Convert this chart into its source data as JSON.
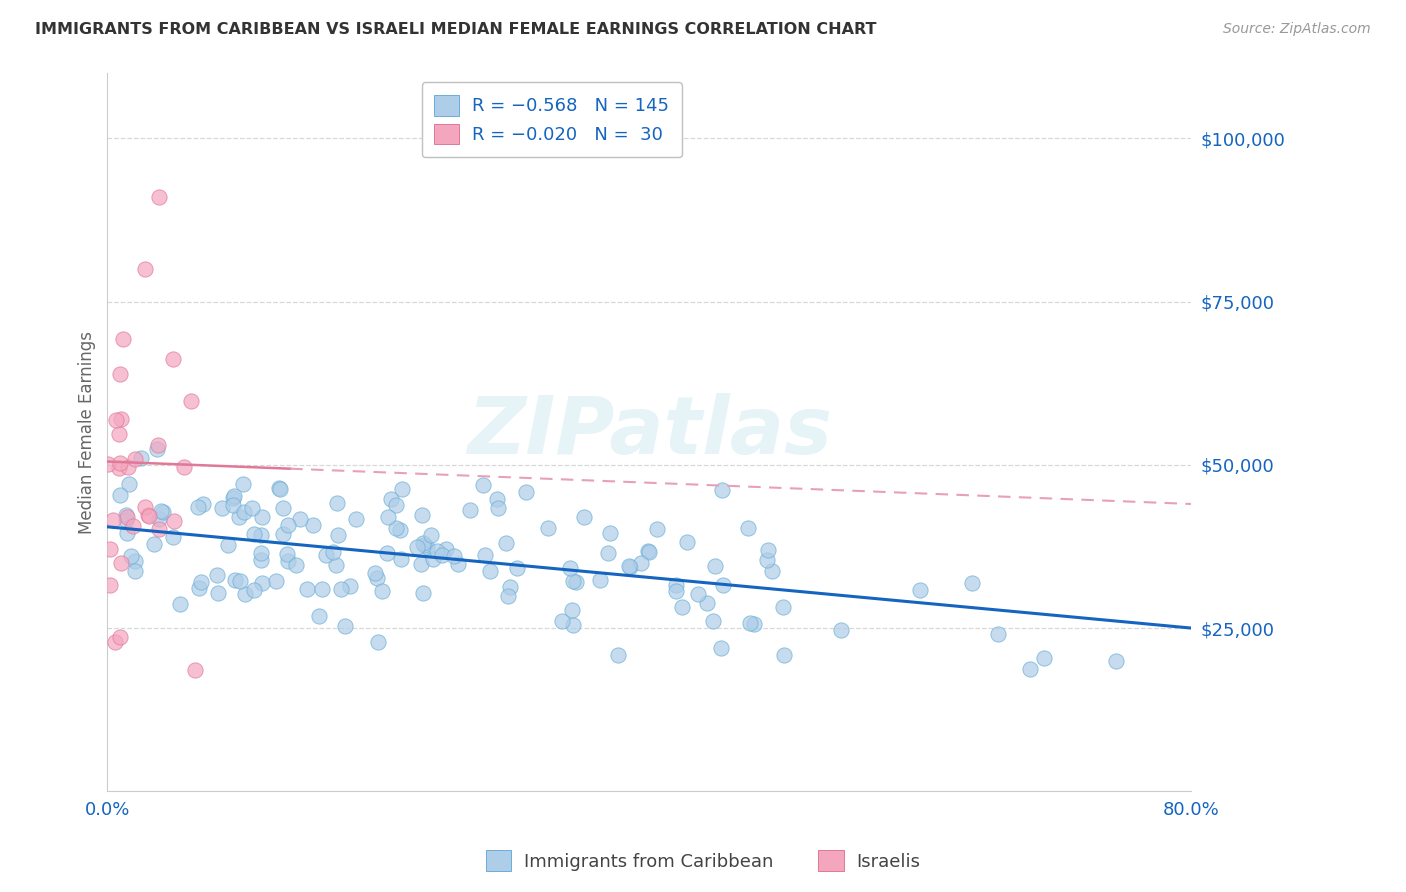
{
  "title": "IMMIGRANTS FROM CARIBBEAN VS ISRAELI MEDIAN FEMALE EARNINGS CORRELATION CHART",
  "source": "Source: ZipAtlas.com",
  "ylabel": "Median Female Earnings",
  "xlim": [
    0.0,
    0.8
  ],
  "ylim": [
    0,
    110000
  ],
  "watermark": "ZIPatlas",
  "caribbean_color": "#aecde8",
  "caribbean_edge": "#6aaed6",
  "israeli_color": "#f4a6bf",
  "israeli_edge": "#e07898",
  "trendline_caribbean_color": "#1565c0",
  "trendline_israeli_solid_color": "#e07898",
  "trendline_israeli_dash_color": "#e8a0b8",
  "caribbean_R": -0.568,
  "caribbean_N": 145,
  "israeli_R": -0.02,
  "israeli_N": 30,
  "background_color": "#ffffff",
  "grid_color": "#d8d8d8",
  "title_color": "#333333",
  "axis_label_color": "#1565c0",
  "source_color": "#999999",
  "legend_text_color": "#1565c0",
  "legend_label_color": "#444444",
  "y_tick_vals": [
    25000,
    50000,
    75000,
    100000
  ],
  "y_tick_labels": [
    "$25,000",
    "$50,000",
    "$75,000",
    "$100,000"
  ]
}
